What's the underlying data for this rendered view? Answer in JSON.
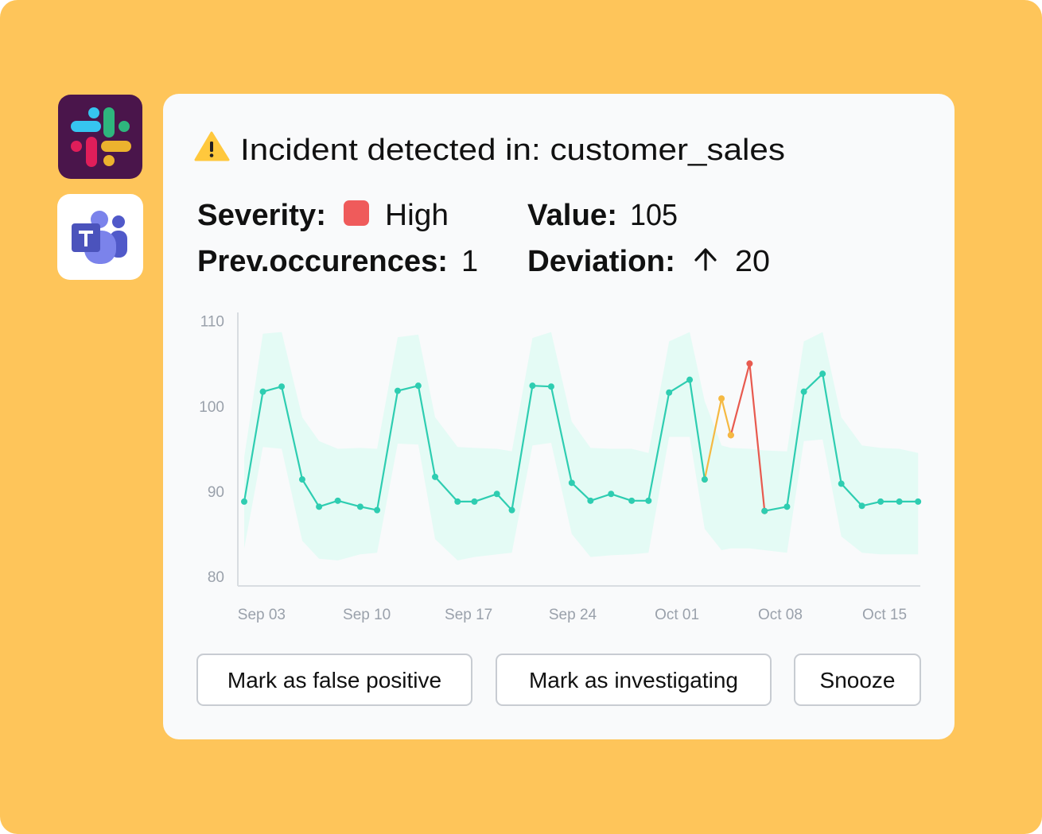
{
  "title": "Incident detected in: customer_sales",
  "fields": [
    {
      "label": "Severity:",
      "value": "High"
    },
    {
      "label": "Value:",
      "value": "105"
    },
    {
      "label": "Prev.occurences:",
      "value": "1"
    },
    {
      "label": "Deviation:",
      "value": "20"
    }
  ],
  "chart_data": {
    "type": "line",
    "x": [
      0,
      1.0,
      2.0,
      3.1,
      4.0,
      5.0,
      6.2,
      7.1,
      8.2,
      9.3,
      10.2,
      11.4,
      12.3,
      13.5,
      14.3,
      15.4,
      16.4,
      17.5,
      18.5,
      19.6,
      20.7,
      21.6,
      22.7,
      23.8,
      24.6,
      25.5,
      26.0,
      27.0,
      27.8,
      29.0,
      29.9,
      30.9,
      31.9,
      33.0,
      34.0,
      35.0,
      36.0
    ],
    "band": {
      "color": "#e4fbf5",
      "upper": [
        94.0,
        108.5,
        108.7,
        98.7,
        95.9,
        95.0,
        95.1,
        95.0,
        108.1,
        108.4,
        98.7,
        95.2,
        95.1,
        95.0,
        94.7,
        108.0,
        108.7,
        98.2,
        95.1,
        95.0,
        95.0,
        94.5,
        107.6,
        108.7,
        100.6,
        95.4,
        95.1,
        95.0,
        94.8,
        94.7,
        107.6,
        108.7,
        98.7,
        95.4,
        95.1,
        95.0,
        94.5
      ],
      "lower": [
        83.3,
        95.2,
        95.0,
        84.2,
        82.1,
        81.9,
        82.6,
        82.8,
        95.6,
        95.5,
        84.4,
        81.9,
        82.3,
        82.6,
        82.8,
        95.4,
        95.7,
        85.0,
        82.3,
        82.5,
        82.6,
        82.8,
        96.4,
        96.4,
        85.6,
        83.1,
        83.3,
        83.3,
        83.1,
        82.8,
        95.9,
        96.1,
        84.7,
        82.8,
        82.6,
        82.6,
        82.6
      ]
    },
    "series": [
      {
        "color": "#e85a4f",
        "values": [
          null,
          null,
          null,
          null,
          null,
          null,
          null,
          null,
          null,
          null,
          null,
          null,
          null,
          null,
          null,
          null,
          null,
          null,
          null,
          null,
          null,
          null,
          null,
          null,
          null,
          null,
          96.6,
          105,
          87.7,
          null,
          null,
          null,
          null,
          null,
          null,
          null,
          null
        ]
      },
      {
        "color": "#f5b942",
        "values": [
          null,
          null,
          null,
          null,
          null,
          null,
          null,
          null,
          null,
          null,
          null,
          null,
          null,
          null,
          null,
          null,
          null,
          null,
          null,
          null,
          null,
          null,
          null,
          null,
          91.4,
          100.9,
          96.6,
          null,
          null,
          null,
          null,
          null,
          null,
          null,
          null,
          null,
          null
        ]
      },
      {
        "color": "#2ecdb1",
        "values": [
          88.8,
          101.7,
          102.3,
          91.4,
          88.2,
          88.9,
          88.2,
          87.8,
          101.8,
          102.4,
          91.7,
          88.8,
          88.8,
          89.7,
          87.8,
          102.4,
          102.3,
          91.0,
          88.9,
          89.7,
          88.9,
          88.9,
          101.6,
          103.1,
          91.4,
          null,
          null,
          null,
          87.7,
          88.2,
          101.7,
          103.8,
          90.9,
          88.3,
          88.8,
          88.8,
          88.8
        ]
      }
    ],
    "xlim": [
      -0.34,
      36.12
    ],
    "xticks": [
      {
        "value": 0.93,
        "label": "Sep 03"
      },
      {
        "value": 6.55,
        "label": "Sep 10"
      },
      {
        "value": 11.99,
        "label": "Sep 17"
      },
      {
        "value": 17.55,
        "label": "Sep 24"
      },
      {
        "value": 23.12,
        "label": "Oct 01"
      },
      {
        "value": 28.64,
        "label": "Oct 08"
      },
      {
        "value": 34.21,
        "label": "Oct 15"
      }
    ],
    "ylim": [
      78.9,
      111
    ],
    "yticks": [
      80,
      90,
      100,
      110
    ],
    "grid": false
  },
  "buttons": [
    "Mark as false positive",
    "Mark as investigating",
    "Snooze"
  ]
}
